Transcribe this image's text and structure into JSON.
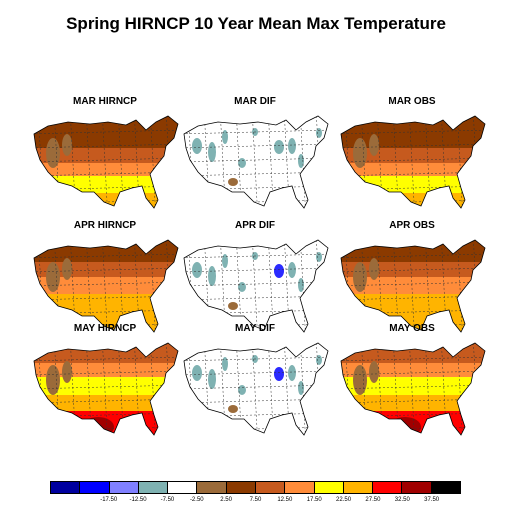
{
  "title": "Spring HIRNCP 10 Year Mean Max Temperature",
  "panels": [
    {
      "label": "MAR HIRNCP",
      "kind": "model",
      "month": "MAR"
    },
    {
      "label": "MAR DIF",
      "kind": "diff",
      "month": "MAR"
    },
    {
      "label": "MAR OBS",
      "kind": "obs",
      "month": "MAR"
    },
    {
      "label": "APR HIRNCP",
      "kind": "model",
      "month": "APR"
    },
    {
      "label": "APR DIF",
      "kind": "diff",
      "month": "APR"
    },
    {
      "label": "APR OBS",
      "kind": "obs",
      "month": "APR"
    },
    {
      "label": "MAY HIRNCP",
      "kind": "model",
      "month": "MAY"
    },
    {
      "label": "MAY DIF",
      "kind": "diff",
      "month": "MAY"
    },
    {
      "label": "MAY OBS",
      "kind": "obs",
      "month": "MAY"
    }
  ],
  "colorbar": {
    "colors": [
      "#00009f",
      "#0000ff",
      "#8080ff",
      "#7fb2b2",
      "#ffffff",
      "#9b6b3a",
      "#8b3a00",
      "#c65a1e",
      "#ff8c3a",
      "#ffff00",
      "#ffb400",
      "#ff0000",
      "#a00000",
      "#000000"
    ],
    "labels": [
      "-17.50",
      "-12.50",
      "-7.50",
      "-2.50",
      "2.50",
      "7.50",
      "12.50",
      "17.50",
      "22.50",
      "27.50",
      "32.50",
      "37.50"
    ]
  }
}
